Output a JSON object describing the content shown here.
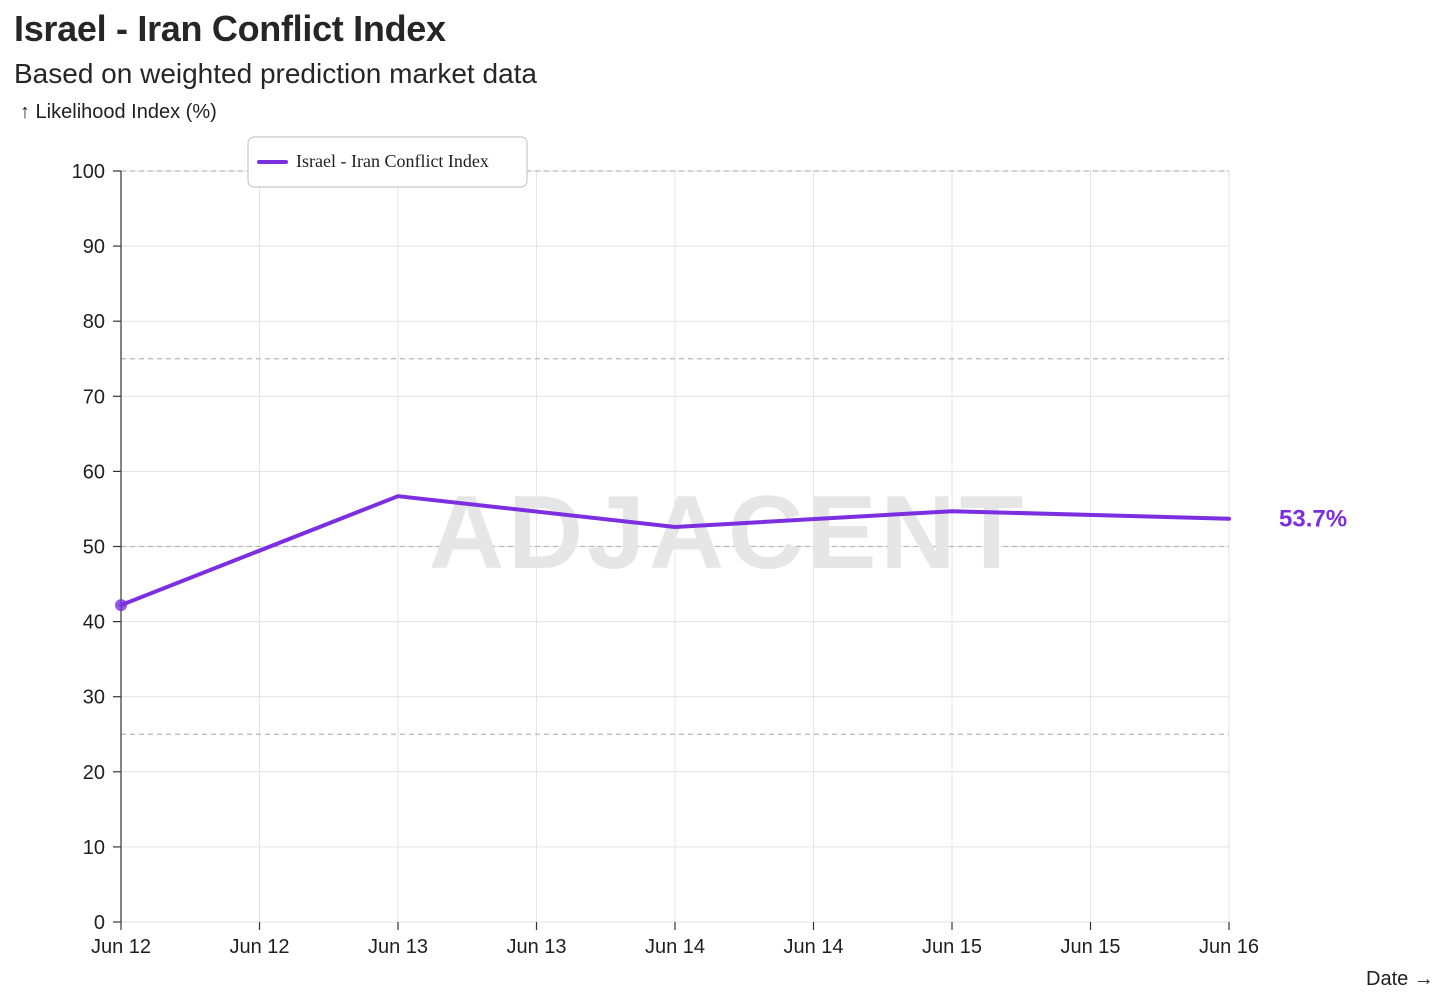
{
  "chart_data": {
    "type": "line",
    "title": "Israel - Iran Conflict Index",
    "subtitle": "Based on weighted prediction market data",
    "ylabel": "↑ Likelihood Index (%)",
    "xlabel": "Date →",
    "ylim": [
      0,
      100
    ],
    "yticks": [
      0,
      10,
      20,
      30,
      40,
      50,
      60,
      70,
      80,
      90,
      100
    ],
    "reference_lines": [
      25,
      50,
      75,
      100
    ],
    "xlim": [
      0,
      8
    ],
    "xticks": [
      {
        "x": 0,
        "label": "Jun 12"
      },
      {
        "x": 1,
        "label": "Jun 12"
      },
      {
        "x": 2,
        "label": "Jun 13"
      },
      {
        "x": 3,
        "label": "Jun 13"
      },
      {
        "x": 4,
        "label": "Jun 14"
      },
      {
        "x": 5,
        "label": "Jun 14"
      },
      {
        "x": 6,
        "label": "Jun 15"
      },
      {
        "x": 7,
        "label": "Jun 15"
      },
      {
        "x": 8,
        "label": "Jun 16"
      }
    ],
    "series": [
      {
        "name": "Israel - Iran Conflict Index",
        "color": "#7b2fe0",
        "x": [
          0,
          2,
          4,
          6,
          8
        ],
        "values": [
          42.2,
          56.7,
          52.6,
          54.7,
          53.7
        ]
      }
    ],
    "end_label": "53.7%",
    "watermark": "ADJACENT",
    "legend_position": "top-left",
    "grid": true
  }
}
